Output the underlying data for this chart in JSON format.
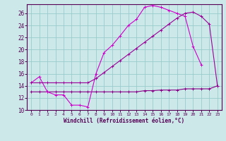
{
  "xlabel": "Windchill (Refroidissement éolien,°C)",
  "background_color": "#cce8e8",
  "grid_color": "#99cccc",
  "line_color1": "#880088",
  "line_color2": "#cc00cc",
  "line_color3": "#990099",
  "xlim": [
    -0.5,
    23.5
  ],
  "ylim": [
    10,
    27.5
  ],
  "yticks": [
    10,
    12,
    14,
    16,
    18,
    20,
    22,
    24,
    26
  ],
  "xticks": [
    0,
    1,
    2,
    3,
    4,
    5,
    6,
    7,
    8,
    9,
    10,
    11,
    12,
    13,
    14,
    15,
    16,
    17,
    18,
    19,
    20,
    21,
    22,
    23
  ],
  "line1_x": [
    0,
    1,
    2,
    3,
    4,
    5,
    6,
    7,
    8,
    9,
    10,
    11,
    12,
    13,
    14,
    15,
    16,
    17,
    18,
    19,
    20,
    21,
    22,
    23
  ],
  "line1_y": [
    13.0,
    13.0,
    13.0,
    13.0,
    13.0,
    13.0,
    13.0,
    13.0,
    13.0,
    13.0,
    13.0,
    13.0,
    13.0,
    13.0,
    13.2,
    13.2,
    13.3,
    13.3,
    13.3,
    13.5,
    13.5,
    13.5,
    13.5,
    14.0
  ],
  "line2_x": [
    0,
    1,
    2,
    3,
    4,
    5,
    6,
    7,
    8,
    9,
    10,
    11,
    12,
    13,
    14,
    15,
    16,
    17,
    18,
    19,
    20,
    21
  ],
  "line2_y": [
    14.5,
    15.5,
    13.0,
    12.5,
    12.5,
    10.8,
    10.8,
    10.5,
    16.0,
    19.5,
    20.7,
    22.3,
    24.0,
    25.0,
    27.0,
    27.3,
    27.0,
    26.5,
    26.0,
    25.5,
    20.5,
    17.5
  ],
  "line3_x": [
    0,
    1,
    2,
    3,
    4,
    5,
    6,
    7,
    8,
    9,
    10,
    11,
    12,
    13,
    14,
    15,
    16,
    17,
    18,
    19,
    20,
    21,
    22,
    23
  ],
  "line3_y": [
    14.5,
    14.5,
    14.5,
    14.5,
    14.5,
    14.5,
    14.5,
    14.5,
    15.2,
    16.2,
    17.2,
    18.2,
    19.2,
    20.2,
    21.2,
    22.2,
    23.2,
    24.2,
    25.2,
    26.0,
    26.2,
    25.5,
    24.2,
    14.0
  ]
}
